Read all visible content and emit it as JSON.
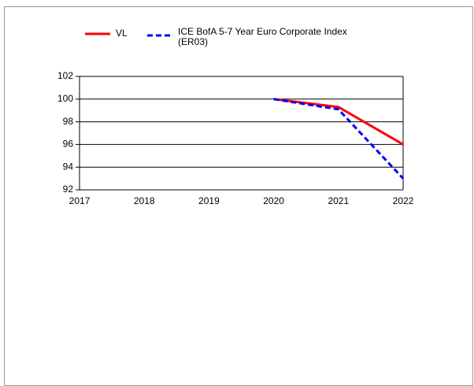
{
  "chart_data": {
    "type": "line",
    "x": [
      2017,
      2018,
      2019,
      2020,
      2021,
      2022
    ],
    "series": [
      {
        "name": "VL",
        "color": "#ff0000",
        "dash": false,
        "values": [
          null,
          null,
          null,
          100,
          99.3,
          96
        ]
      },
      {
        "name": "ICE BofA 5-7 Year Euro Corporate Index (ER03)",
        "color": "#0000ff",
        "dash": true,
        "values": [
          null,
          null,
          null,
          100,
          99.1,
          93
        ]
      }
    ],
    "xlim": [
      2017,
      2022
    ],
    "xticks": [
      2017,
      2018,
      2019,
      2020,
      2021,
      2022
    ],
    "ylim": [
      92,
      102
    ],
    "yticks": [
      92,
      94,
      96,
      98,
      100,
      102
    ],
    "grid": true,
    "legend": "top"
  }
}
